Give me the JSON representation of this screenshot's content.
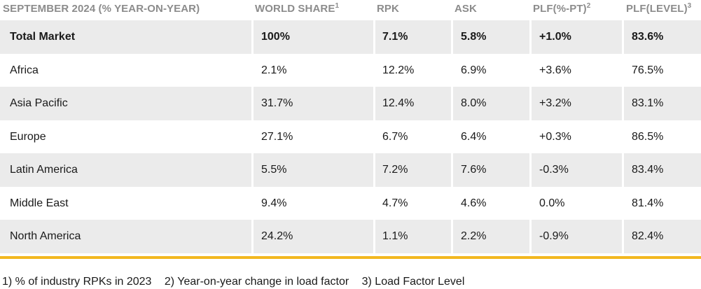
{
  "table": {
    "headers": [
      {
        "label": "SEPTEMBER 2024 (% YEAR-ON-YEAR)",
        "sup": ""
      },
      {
        "label": "WORLD SHARE",
        "sup": "1"
      },
      {
        "label": "RPK",
        "sup": ""
      },
      {
        "label": "ASK",
        "sup": ""
      },
      {
        "label": "PLF(%-PT)",
        "sup": "2"
      },
      {
        "label": "PLF(LEVEL)",
        "sup": "3"
      }
    ],
    "rows": [
      [
        "Total Market",
        "100%",
        "7.1%",
        "5.8%",
        "+1.0%",
        "83.6%"
      ],
      [
        "Africa",
        "2.1%",
        "12.2%",
        "6.9%",
        "+3.6%",
        "76.5%"
      ],
      [
        "Asia Pacific",
        "31.7%",
        "12.4%",
        "8.0%",
        "+3.2%",
        "83.1%"
      ],
      [
        "Europe",
        "27.1%",
        "6.7%",
        "6.4%",
        "+0.3%",
        "86.5%"
      ],
      [
        "Latin America",
        "5.5%",
        "7.2%",
        "7.6%",
        "-0.3%",
        "83.4%"
      ],
      [
        "Middle East",
        "9.4%",
        "4.7%",
        "4.6%",
        "0.0%",
        "81.4%"
      ],
      [
        "North America",
        "24.2%",
        "1.1%",
        "2.2%",
        "-0.9%",
        "82.4%"
      ]
    ]
  },
  "footnotes": [
    "1) % of industry RPKs in 2023",
    "2) Year-on-year change in load factor",
    "3) Load Factor Level"
  ],
  "colors": {
    "header_text": "#8c8c8c",
    "row_shade": "#ebebeb",
    "accent_rule": "#f2b71f"
  }
}
